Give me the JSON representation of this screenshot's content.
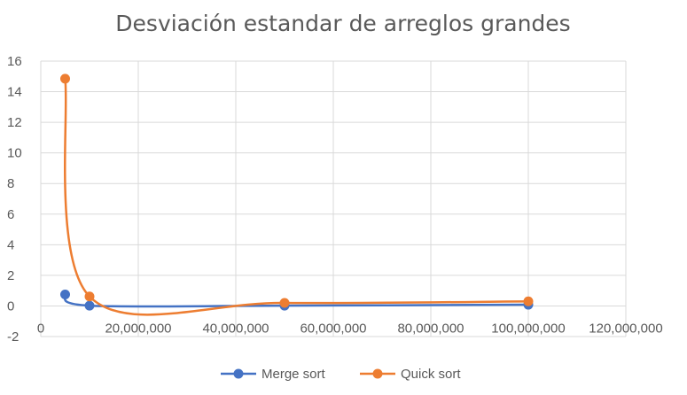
{
  "chart_data": {
    "type": "scatter",
    "title": "Desviación estandar de arreglos grandes",
    "xlabel": "",
    "ylabel": "",
    "xlim": [
      0,
      120000000
    ],
    "ylim": [
      -2,
      16
    ],
    "x_ticks": [
      0,
      20000000,
      40000000,
      60000000,
      80000000,
      100000000,
      120000000
    ],
    "x_tick_labels": [
      "0",
      "20,000,000",
      "40,000,000",
      "60,000,000",
      "80,000,000",
      "100,000,000",
      "120,000,000"
    ],
    "y_ticks": [
      -2,
      0,
      2,
      4,
      6,
      8,
      10,
      12,
      14,
      16
    ],
    "y_tick_labels": [
      "-2",
      "0",
      "2",
      "4",
      "6",
      "8",
      "10",
      "12",
      "14",
      "16"
    ],
    "grid": true,
    "smooth_lines": true,
    "legend_position": "bottom",
    "series": [
      {
        "name": "Merge sort",
        "color": "#4472C4",
        "x": [
          5000000,
          10000000,
          50000000,
          100000000
        ],
        "y": [
          0.75,
          0.02,
          0.02,
          0.08
        ]
      },
      {
        "name": "Quick sort",
        "color": "#ED7D31",
        "x": [
          5000000,
          10000000,
          50000000,
          100000000
        ],
        "y": [
          14.85,
          0.62,
          0.2,
          0.3
        ]
      }
    ]
  }
}
